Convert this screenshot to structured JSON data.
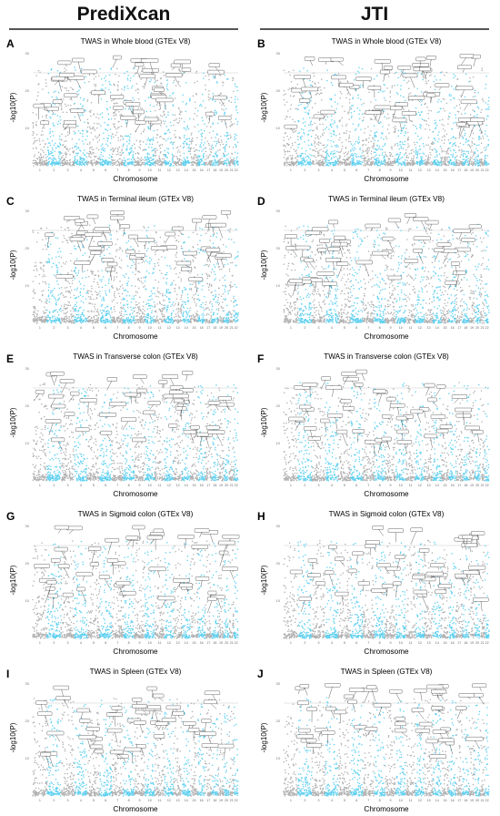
{
  "columns": [
    {
      "title": "PrediXcan"
    },
    {
      "title": "JTI"
    }
  ],
  "colors": {
    "odd_chromosome": "#b0b0b0",
    "even_chromosome": "#5fd0f0",
    "label_box_stroke": "#222222",
    "header_rule": "#555555"
  },
  "chart_data": [
    {
      "type": "scatter",
      "panel_letter": "A",
      "title": "TWAS in Whole blood (GTEx V8)",
      "method": "PrediXcan",
      "tissue": "Whole blood",
      "xlabel": "Chromosome",
      "ylabel": "-log10(P)",
      "chromosomes": [
        "1",
        "2",
        "3",
        "4",
        "5",
        "6",
        "7",
        "8",
        "9",
        "10",
        "11",
        "12",
        "13",
        "14",
        "15",
        "16",
        "17",
        "18",
        "19",
        "20",
        "21",
        "22"
      ],
      "y_ticks": [
        "30",
        "20",
        "10"
      ],
      "seed": 11
    },
    {
      "type": "scatter",
      "panel_letter": "B",
      "title": "TWAS in Whole blood (GTEx V8)",
      "method": "JTI",
      "tissue": "Whole blood",
      "xlabel": "Chromosome",
      "ylabel": "-log10(P)",
      "chromosomes": [
        "1",
        "2",
        "3",
        "4",
        "5",
        "6",
        "7",
        "8",
        "9",
        "10",
        "11",
        "12",
        "13",
        "14",
        "15",
        "16",
        "17",
        "18",
        "19",
        "20",
        "21",
        "22"
      ],
      "y_ticks": [
        "30",
        "20",
        "10"
      ],
      "seed": 23
    },
    {
      "type": "scatter",
      "panel_letter": "C",
      "title": "TWAS in Terminal ileum (GTEx V8)",
      "method": "PrediXcan",
      "tissue": "Terminal ileum",
      "xlabel": "Chromosome",
      "ylabel": "-log10(P)",
      "chromosomes": [
        "1",
        "2",
        "3",
        "4",
        "5",
        "6",
        "7",
        "8",
        "9",
        "10",
        "11",
        "12",
        "13",
        "14",
        "15",
        "16",
        "17",
        "18",
        "19",
        "20",
        "21",
        "22"
      ],
      "y_ticks": [
        "30",
        "20",
        "10"
      ],
      "seed": 37
    },
    {
      "type": "scatter",
      "panel_letter": "D",
      "title": "TWAS in Terminal ileum (GTEx V8)",
      "method": "JTI",
      "tissue": "Terminal ileum",
      "xlabel": "Chromosome",
      "ylabel": "-log10(P)",
      "chromosomes": [
        "1",
        "2",
        "3",
        "4",
        "5",
        "6",
        "7",
        "8",
        "9",
        "10",
        "11",
        "12",
        "13",
        "14",
        "15",
        "16",
        "17",
        "18",
        "19",
        "20",
        "21",
        "22"
      ],
      "y_ticks": [
        "30",
        "20",
        "10"
      ],
      "seed": 41
    },
    {
      "type": "scatter",
      "panel_letter": "E",
      "title": "TWAS in Transverse colon (GTEx V8)",
      "method": "PrediXcan",
      "tissue": "Transverse colon",
      "xlabel": "Chromosome",
      "ylabel": "-log10(P)",
      "chromosomes": [
        "1",
        "2",
        "3",
        "4",
        "5",
        "6",
        "7",
        "8",
        "9",
        "10",
        "11",
        "12",
        "13",
        "14",
        "15",
        "16",
        "17",
        "18",
        "19",
        "20",
        "21",
        "22"
      ],
      "y_ticks": [
        "30",
        "20",
        "10"
      ],
      "seed": 53
    },
    {
      "type": "scatter",
      "panel_letter": "F",
      "title": "TWAS in Transverse colon (GTEx V8)",
      "method": "JTI",
      "tissue": "Transverse colon",
      "xlabel": "Chromosome",
      "ylabel": "-log10(P)",
      "chromosomes": [
        "1",
        "2",
        "3",
        "4",
        "5",
        "6",
        "7",
        "8",
        "9",
        "10",
        "11",
        "12",
        "13",
        "14",
        "15",
        "16",
        "17",
        "18",
        "19",
        "20",
        "21",
        "22"
      ],
      "y_ticks": [
        "30",
        "20",
        "10"
      ],
      "seed": 67
    },
    {
      "type": "scatter",
      "panel_letter": "G",
      "title": "TWAS in Sigmoid colon (GTEx V8)",
      "method": "PrediXcan",
      "tissue": "Sigmoid colon",
      "xlabel": "Chromosome",
      "ylabel": "-log10(P)",
      "chromosomes": [
        "1",
        "2",
        "3",
        "4",
        "5",
        "6",
        "7",
        "8",
        "9",
        "10",
        "11",
        "12",
        "13",
        "14",
        "15",
        "16",
        "17",
        "18",
        "19",
        "20",
        "21",
        "22"
      ],
      "y_ticks": [
        "30",
        "20",
        "10"
      ],
      "seed": 71
    },
    {
      "type": "scatter",
      "panel_letter": "H",
      "title": "TWAS in Sigmoid colon (GTEx V8)",
      "method": "JTI",
      "tissue": "Sigmoid colon",
      "xlabel": "Chromosome",
      "ylabel": "-log10(P)",
      "chromosomes": [
        "1",
        "2",
        "3",
        "4",
        "5",
        "6",
        "7",
        "8",
        "9",
        "10",
        "11",
        "12",
        "13",
        "14",
        "15",
        "16",
        "17",
        "18",
        "19",
        "20",
        "21",
        "22"
      ],
      "y_ticks": [
        "30",
        "20",
        "10"
      ],
      "seed": 83
    },
    {
      "type": "scatter",
      "panel_letter": "I",
      "title": "TWAS in Spleen (GTEx V8)",
      "method": "PrediXcan",
      "tissue": "Spleen",
      "xlabel": "Chromosome",
      "ylabel": "-log10(P)",
      "chromosomes": [
        "1",
        "2",
        "3",
        "4",
        "5",
        "6",
        "7",
        "8",
        "9",
        "10",
        "11",
        "12",
        "13",
        "14",
        "15",
        "16",
        "17",
        "18",
        "19",
        "20",
        "21",
        "22"
      ],
      "y_ticks": [
        "30",
        "20",
        "10"
      ],
      "seed": 97
    },
    {
      "type": "scatter",
      "panel_letter": "J",
      "title": "TWAS in Spleen (GTEx V8)",
      "method": "JTI",
      "tissue": "Spleen",
      "xlabel": "Chromosome",
      "ylabel": "-log10(P)",
      "chromosomes": [
        "1",
        "2",
        "3",
        "4",
        "5",
        "6",
        "7",
        "8",
        "9",
        "10",
        "11",
        "12",
        "13",
        "14",
        "15",
        "16",
        "17",
        "18",
        "19",
        "20",
        "21",
        "22"
      ],
      "y_ticks": [
        "30",
        "20",
        "10"
      ],
      "seed": 101
    }
  ]
}
